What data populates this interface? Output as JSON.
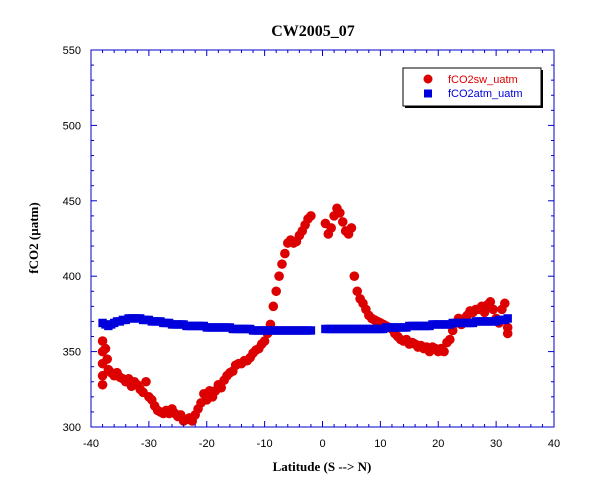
{
  "chart_data": {
    "type": "scatter",
    "title": "CW2005_07",
    "xlabel": "Latitude (S --> N)",
    "ylabel": "fCO2 (µatm)",
    "xlim": [
      -40,
      40
    ],
    "ylim": [
      300,
      550
    ],
    "xticks": [
      -40,
      -30,
      -20,
      -10,
      0,
      10,
      20,
      30,
      40
    ],
    "yticks": [
      300,
      350,
      400,
      450,
      500,
      550
    ],
    "grid": false,
    "legend_position": "top-right",
    "series": [
      {
        "name": "fCO2sw_uatm",
        "marker": "circle",
        "color": "#dd0000",
        "points": [
          [
            -38,
            357
          ],
          [
            -38,
            350
          ],
          [
            -38,
            342
          ],
          [
            -38,
            334
          ],
          [
            -38,
            328
          ],
          [
            -37.5,
            352
          ],
          [
            -37.2,
            345
          ],
          [
            -37,
            338
          ],
          [
            -36.5,
            336
          ],
          [
            -36,
            334
          ],
          [
            -35.5,
            336
          ],
          [
            -35,
            333
          ],
          [
            -34.5,
            332
          ],
          [
            -34,
            330
          ],
          [
            -33.5,
            332
          ],
          [
            -33,
            327
          ],
          [
            -32.5,
            330
          ],
          [
            -32,
            328
          ],
          [
            -31.5,
            325
          ],
          [
            -31,
            323
          ],
          [
            -30.5,
            330
          ],
          [
            -30,
            320
          ],
          [
            -29.5,
            318
          ],
          [
            -29,
            314
          ],
          [
            -28.5,
            311
          ],
          [
            -28,
            310
          ],
          [
            -27.5,
            309
          ],
          [
            -27,
            311
          ],
          [
            -26.5,
            309
          ],
          [
            -26,
            312
          ],
          [
            -25.5,
            309
          ],
          [
            -25,
            307
          ],
          [
            -24.5,
            308
          ],
          [
            -24,
            304
          ],
          [
            -23.5,
            305
          ],
          [
            -23,
            306
          ],
          [
            -22.5,
            304
          ],
          [
            -22,
            308
          ],
          [
            -21.5,
            312
          ],
          [
            -21,
            316
          ],
          [
            -20.5,
            322
          ],
          [
            -20,
            318
          ],
          [
            -19.5,
            324
          ],
          [
            -19,
            320
          ],
          [
            -18.5,
            324
          ],
          [
            -18,
            328
          ],
          [
            -17.5,
            326
          ],
          [
            -17,
            331
          ],
          [
            -16.5,
            334
          ],
          [
            -16,
            336
          ],
          [
            -15.5,
            337
          ],
          [
            -15,
            341
          ],
          [
            -14.5,
            342
          ],
          [
            -14,
            342
          ],
          [
            -13.5,
            344
          ],
          [
            -13,
            344
          ],
          [
            -12.5,
            346
          ],
          [
            -12,
            349
          ],
          [
            -11.5,
            351
          ],
          [
            -11,
            352
          ],
          [
            -10.5,
            355
          ],
          [
            -10,
            357
          ],
          [
            -9.5,
            362
          ],
          [
            -9,
            368
          ],
          [
            -8.5,
            380
          ],
          [
            -8,
            390
          ],
          [
            -7.5,
            400
          ],
          [
            -7,
            408
          ],
          [
            -6.5,
            415
          ],
          [
            -6,
            422
          ],
          [
            -5.5,
            424
          ],
          [
            -5,
            422
          ],
          [
            -4.5,
            423
          ],
          [
            -4,
            427
          ],
          [
            -3.5,
            430
          ],
          [
            -3,
            434
          ],
          [
            -2.5,
            438
          ],
          [
            -2,
            440
          ],
          [
            0.5,
            435
          ],
          [
            1,
            428
          ],
          [
            1.5,
            432
          ],
          [
            2,
            440
          ],
          [
            2.5,
            445
          ],
          [
            3,
            442
          ],
          [
            3.5,
            436
          ],
          [
            4,
            430
          ],
          [
            4.5,
            428
          ],
          [
            5,
            432
          ],
          [
            5.5,
            400
          ],
          [
            6,
            390
          ],
          [
            6.5,
            385
          ],
          [
            7,
            382
          ],
          [
            7.5,
            378
          ],
          [
            8,
            374
          ],
          [
            8.5,
            372
          ],
          [
            9,
            371
          ],
          [
            9.5,
            370
          ],
          [
            10,
            369
          ],
          [
            10.5,
            368
          ],
          [
            11,
            367
          ],
          [
            11.5,
            366
          ],
          [
            12,
            365
          ],
          [
            12.5,
            362
          ],
          [
            13,
            360
          ],
          [
            13.5,
            358
          ],
          [
            14,
            357
          ],
          [
            14.5,
            358
          ],
          [
            15,
            355
          ],
          [
            15.5,
            356
          ],
          [
            16,
            355
          ],
          [
            16.5,
            353
          ],
          [
            17,
            354
          ],
          [
            17.5,
            352
          ],
          [
            18,
            353
          ],
          [
            18.5,
            350
          ],
          [
            19,
            353
          ],
          [
            19.5,
            352
          ],
          [
            20,
            350
          ],
          [
            20.5,
            352
          ],
          [
            21,
            350
          ],
          [
            21.5,
            356
          ],
          [
            22,
            358
          ],
          [
            22.5,
            364
          ],
          [
            23,
            369
          ],
          [
            23.5,
            372
          ],
          [
            24,
            368
          ],
          [
            24.5,
            372
          ],
          [
            25,
            374
          ],
          [
            25.5,
            377
          ],
          [
            26,
            376
          ],
          [
            26.5,
            378
          ],
          [
            27,
            378
          ],
          [
            27.5,
            380
          ],
          [
            28,
            376
          ],
          [
            28.5,
            381
          ],
          [
            29,
            383
          ],
          [
            29.5,
            378
          ],
          [
            30,
            372
          ],
          [
            30.5,
            369
          ],
          [
            31,
            378
          ],
          [
            31.5,
            382
          ],
          [
            32,
            366
          ],
          [
            32,
            362
          ]
        ]
      },
      {
        "name": "fCO2atm_uatm",
        "marker": "square",
        "color": "#0000dd",
        "points": [
          [
            -38,
            369
          ],
          [
            -37.5,
            368
          ],
          [
            -37,
            367
          ],
          [
            -36.5,
            368
          ],
          [
            -36,
            369
          ],
          [
            -35.5,
            370
          ],
          [
            -35,
            370
          ],
          [
            -34.5,
            371
          ],
          [
            -34,
            371
          ],
          [
            -33.5,
            372
          ],
          [
            -33,
            372
          ],
          [
            -32.5,
            372
          ],
          [
            -32,
            372
          ],
          [
            -31.5,
            372
          ],
          [
            -31,
            371
          ],
          [
            -30.5,
            371
          ],
          [
            -30,
            371
          ],
          [
            -29.5,
            370
          ],
          [
            -29,
            370
          ],
          [
            -28.5,
            370
          ],
          [
            -28,
            370
          ],
          [
            -27.5,
            369
          ],
          [
            -27,
            369
          ],
          [
            -26.5,
            369
          ],
          [
            -26,
            368
          ],
          [
            -25.5,
            368
          ],
          [
            -25,
            368
          ],
          [
            -24.5,
            368
          ],
          [
            -24,
            368
          ],
          [
            -23.5,
            367
          ],
          [
            -23,
            367
          ],
          [
            -22.5,
            367
          ],
          [
            -22,
            367
          ],
          [
            -21.5,
            367
          ],
          [
            -21,
            367
          ],
          [
            -20.5,
            367
          ],
          [
            -20,
            366
          ],
          [
            -19.5,
            366
          ],
          [
            -19,
            366
          ],
          [
            -18.5,
            366
          ],
          [
            -18,
            366
          ],
          [
            -17.5,
            366
          ],
          [
            -17,
            366
          ],
          [
            -16.5,
            366
          ],
          [
            -16,
            366
          ],
          [
            -15.5,
            365
          ],
          [
            -15,
            365
          ],
          [
            -14.5,
            365
          ],
          [
            -14,
            365
          ],
          [
            -13.5,
            365
          ],
          [
            -13,
            365
          ],
          [
            -12.5,
            365
          ],
          [
            -12,
            364
          ],
          [
            -11.5,
            364
          ],
          [
            -11,
            364
          ],
          [
            -10.5,
            364
          ],
          [
            -10,
            364
          ],
          [
            -9.5,
            364
          ],
          [
            -9,
            364
          ],
          [
            -8.5,
            364
          ],
          [
            -8,
            364
          ],
          [
            -7.5,
            364
          ],
          [
            -7,
            364
          ],
          [
            -6.5,
            364
          ],
          [
            -6,
            364
          ],
          [
            -5.5,
            364
          ],
          [
            -5,
            364
          ],
          [
            -4.5,
            364
          ],
          [
            -4,
            364
          ],
          [
            -3.5,
            364
          ],
          [
            -3,
            364
          ],
          [
            -2.5,
            364
          ],
          [
            -2,
            364
          ],
          [
            0.5,
            365
          ],
          [
            1,
            365
          ],
          [
            1.5,
            365
          ],
          [
            2,
            365
          ],
          [
            2.5,
            365
          ],
          [
            3,
            365
          ],
          [
            3.5,
            365
          ],
          [
            4,
            365
          ],
          [
            4.5,
            365
          ],
          [
            5,
            365
          ],
          [
            5.5,
            365
          ],
          [
            6,
            365
          ],
          [
            6.5,
            365
          ],
          [
            7,
            365
          ],
          [
            7.5,
            365
          ],
          [
            8,
            365
          ],
          [
            8.5,
            365
          ],
          [
            9,
            365
          ],
          [
            9.5,
            365
          ],
          [
            10,
            365
          ],
          [
            10.5,
            365
          ],
          [
            11,
            366
          ],
          [
            11.5,
            366
          ],
          [
            12,
            366
          ],
          [
            12.5,
            366
          ],
          [
            13,
            366
          ],
          [
            13.5,
            366
          ],
          [
            14,
            366
          ],
          [
            14.5,
            366
          ],
          [
            15,
            367
          ],
          [
            15.5,
            367
          ],
          [
            16,
            367
          ],
          [
            16.5,
            367
          ],
          [
            17,
            367
          ],
          [
            17.5,
            367
          ],
          [
            18,
            367
          ],
          [
            18.5,
            367
          ],
          [
            19,
            368
          ],
          [
            19.5,
            368
          ],
          [
            20,
            368
          ],
          [
            20.5,
            368
          ],
          [
            21,
            368
          ],
          [
            21.5,
            368
          ],
          [
            22,
            368
          ],
          [
            22.5,
            369
          ],
          [
            23,
            369
          ],
          [
            23.5,
            369
          ],
          [
            24,
            369
          ],
          [
            24.5,
            369
          ],
          [
            25,
            369
          ],
          [
            25.5,
            369
          ],
          [
            26,
            369
          ],
          [
            26.5,
            370
          ],
          [
            27,
            370
          ],
          [
            27.5,
            370
          ],
          [
            28,
            370
          ],
          [
            28.5,
            370
          ],
          [
            29,
            370
          ],
          [
            29.5,
            370
          ],
          [
            30,
            370
          ],
          [
            30.5,
            371
          ],
          [
            31,
            371
          ],
          [
            31.5,
            371
          ],
          [
            32,
            372
          ]
        ]
      }
    ]
  }
}
